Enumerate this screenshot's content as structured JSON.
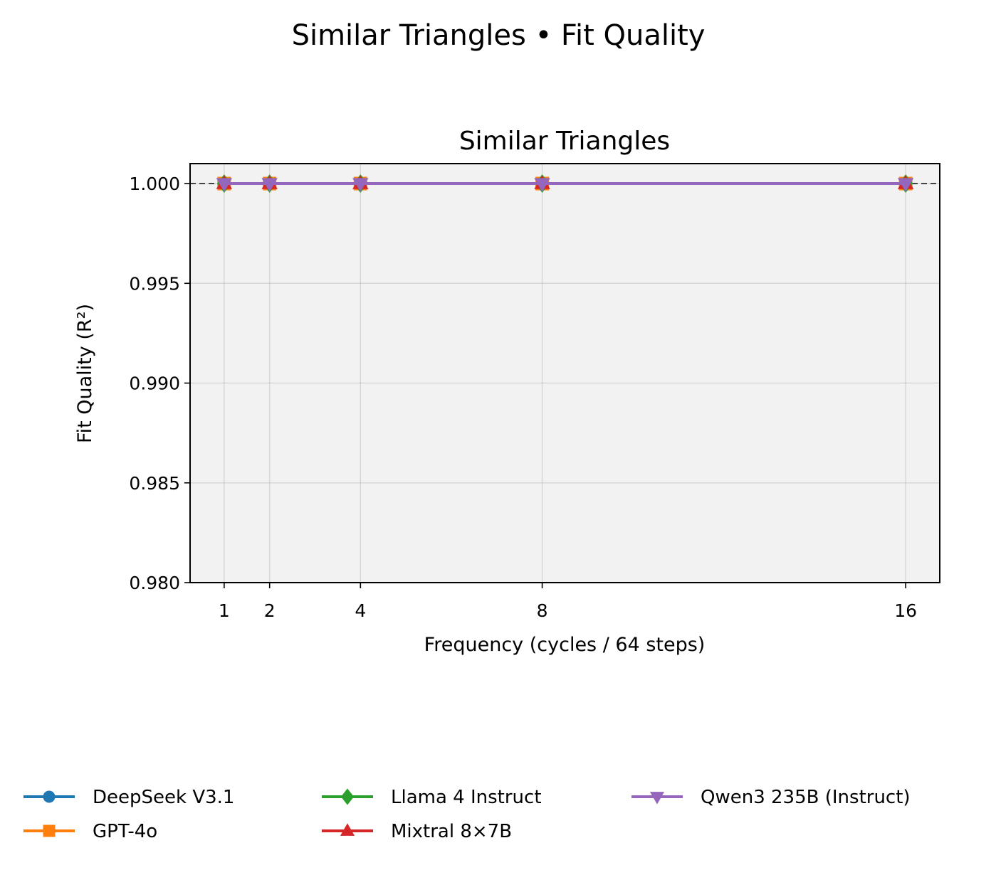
{
  "suptitle": "Similar Triangles • Fit Quality",
  "chart_data": {
    "type": "line",
    "title": "Similar Triangles",
    "xlabel": "Frequency (cycles / 64 steps)",
    "ylabel": "Fit Quality (R²)",
    "x": [
      1,
      2,
      4,
      8,
      16
    ],
    "xticks": [
      1,
      2,
      4,
      8,
      16
    ],
    "xlim": [
      0.25,
      16.75
    ],
    "yticks": [
      0.98,
      0.985,
      0.99,
      0.995,
      1.0
    ],
    "ylim": [
      0.98,
      1.001
    ],
    "grid": true,
    "reference_line": 1.0,
    "legend_position": "bottom",
    "series": [
      {
        "name": "DeepSeek V3.1",
        "values": [
          1.0,
          1.0,
          1.0,
          1.0,
          1.0
        ],
        "color": "#1f77b4",
        "marker": "circle"
      },
      {
        "name": "GPT-4o",
        "values": [
          1.0,
          1.0,
          1.0,
          1.0,
          1.0
        ],
        "color": "#ff7f0e",
        "marker": "square"
      },
      {
        "name": "Llama 4 Instruct",
        "values": [
          1.0,
          1.0,
          1.0,
          1.0,
          1.0
        ],
        "color": "#2ca02c",
        "marker": "diamond"
      },
      {
        "name": "Mixtral 8×7B",
        "values": [
          1.0,
          1.0,
          1.0,
          1.0,
          1.0
        ],
        "color": "#d62728",
        "marker": "triangle-up"
      },
      {
        "name": "Qwen3 235B (Instruct)",
        "values": [
          1.0,
          1.0,
          1.0,
          1.0,
          1.0
        ],
        "color": "#9467bd",
        "marker": "triangle-down"
      }
    ]
  }
}
